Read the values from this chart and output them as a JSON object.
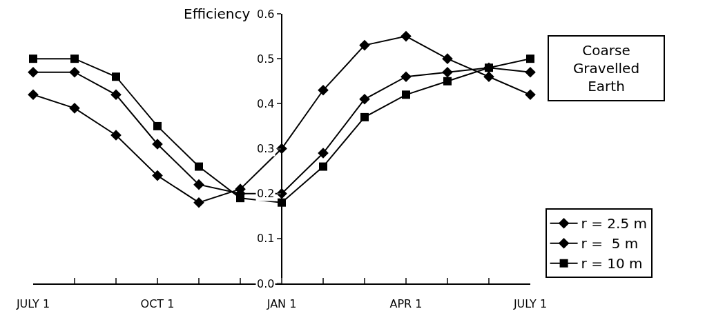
{
  "chart_data": {
    "type": "line",
    "ylabel": "Efficiency",
    "legend_title": "Coarse Gravelled Earth",
    "categories": [
      "JULY 1",
      null,
      null,
      "OCT 1",
      null,
      null,
      "JAN 1",
      null,
      null,
      "APR 1",
      null,
      null,
      "JULY 1"
    ],
    "ylim": [
      0,
      0.6
    ],
    "yticks": [
      {
        "value": 0,
        "label": "0.0"
      },
      0.1,
      0.2,
      0.3,
      0.4,
      0.5,
      0.6
    ],
    "series": [
      {
        "name": "r = 2.5 m",
        "color": "#000000",
        "marker": "diamond",
        "values": [
          0.42,
          0.39,
          0.33,
          0.24,
          0.18,
          0.21,
          0.3,
          0.43,
          0.53,
          0.55,
          0.5,
          0.46,
          0.42
        ]
      },
      {
        "name": "r =  5 m",
        "color": "#000000",
        "marker": "diamond",
        "values": [
          0.47,
          0.47,
          0.42,
          0.31,
          0.22,
          0.2,
          0.2,
          0.29,
          0.41,
          0.46,
          0.47,
          0.48,
          0.47
        ]
      },
      {
        "name": "r = 10 m",
        "color": "#000000",
        "marker": "square",
        "values": [
          0.5,
          0.5,
          0.46,
          0.35,
          0.26,
          0.19,
          0.18,
          0.26,
          0.37,
          0.42,
          0.45,
          0.48,
          0.5
        ]
      }
    ],
    "legend": "right",
    "line_style": "solid"
  }
}
